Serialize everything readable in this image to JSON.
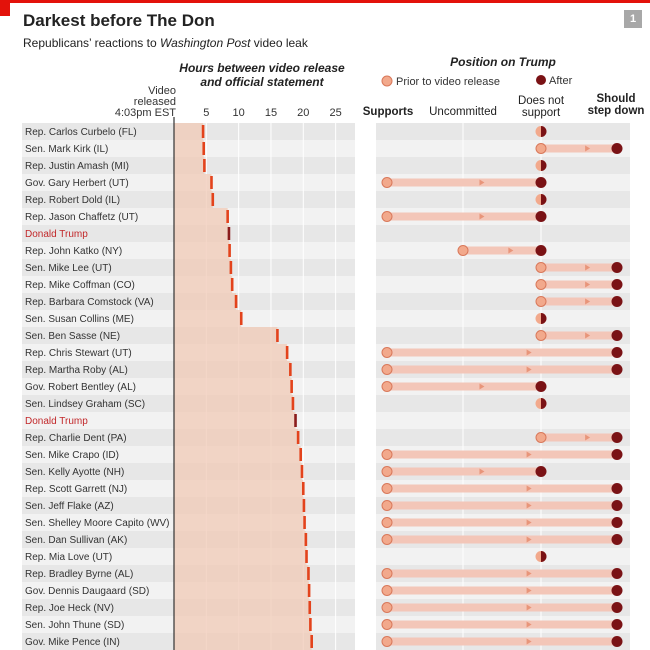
{
  "header": {
    "title": "Darkest before The Don",
    "subtitle_pre": "Republicans’ reactions to ",
    "subtitle_em": "Washington Post",
    "subtitle_post": " video leak",
    "badge": "1"
  },
  "chart_data": [
    {
      "type": "bar",
      "title": "Hours between video release and official statement",
      "origin_label": [
        "Video",
        "released",
        "4:03pm EST"
      ],
      "xlim": [
        0,
        28
      ],
      "ticks": [
        5,
        10,
        15,
        20,
        25
      ],
      "tick_labels": [
        "5",
        "10",
        "15",
        "20",
        "25"
      ],
      "highlight_color": "#c2282a",
      "rows": [
        {
          "name": "Rep. Carlos Curbelo (FL)",
          "hours": 4.5
        },
        {
          "name": "Sen. Mark Kirk (IL)",
          "hours": 4.6
        },
        {
          "name": "Rep. Justin Amash (MI)",
          "hours": 4.7
        },
        {
          "name": "Gov. Gary Herbert (UT)",
          "hours": 5.8
        },
        {
          "name": "Rep. Robert Dold (IL)",
          "hours": 6.0
        },
        {
          "name": "Rep. Jason Chaffetz (UT)",
          "hours": 8.3
        },
        {
          "name": "Donald Trump",
          "hours": 8.5,
          "highlight": true
        },
        {
          "name": "Rep. John Katko (NY)",
          "hours": 8.6
        },
        {
          "name": "Sen. Mike Lee (UT)",
          "hours": 8.8
        },
        {
          "name": "Rep. Mike Coffman (CO)",
          "hours": 9.0
        },
        {
          "name": "Rep. Barbara Comstock (VA)",
          "hours": 9.6
        },
        {
          "name": "Sen. Susan Collins (ME)",
          "hours": 10.4
        },
        {
          "name": "Sen. Ben Sasse (NE)",
          "hours": 16.0
        },
        {
          "name": "Rep. Chris Stewart (UT)",
          "hours": 17.5
        },
        {
          "name": "Rep. Martha Roby (AL)",
          "hours": 18.0
        },
        {
          "name": "Gov. Robert Bentley (AL)",
          "hours": 18.2
        },
        {
          "name": "Sen. Lindsey Graham (SC)",
          "hours": 18.4
        },
        {
          "name": "Donald Trump",
          "hours": 18.8,
          "highlight": true
        },
        {
          "name": "Rep. Charlie Dent (PA)",
          "hours": 19.2
        },
        {
          "name": "Sen. Mike Crapo (ID)",
          "hours": 19.6
        },
        {
          "name": "Sen. Kelly Ayotte (NH)",
          "hours": 19.8
        },
        {
          "name": "Rep. Scott Garrett (NJ)",
          "hours": 20.0
        },
        {
          "name": "Sen. Jeff Flake (AZ)",
          "hours": 20.1
        },
        {
          "name": "Sen. Shelley Moore Capito (WV)",
          "hours": 20.2
        },
        {
          "name": "Sen. Dan Sullivan (AK)",
          "hours": 20.4
        },
        {
          "name": "Rep. Mia Love (UT)",
          "hours": 20.5
        },
        {
          "name": "Rep. Bradley Byrne (AL)",
          "hours": 20.8
        },
        {
          "name": "Gov. Dennis Daugaard (SD)",
          "hours": 20.9
        },
        {
          "name": "Rep. Joe Heck (NV)",
          "hours": 21.0
        },
        {
          "name": "Sen. John Thune (SD)",
          "hours": 21.1
        },
        {
          "name": "Gov. Mike Pence (IN)",
          "hours": 21.3
        }
      ]
    },
    {
      "type": "scatter",
      "title": "Position on Trump",
      "categories": [
        "Supports",
        "Uncommitted",
        "Does not support",
        "Should step down"
      ],
      "category_labels": [
        [
          "Supports"
        ],
        [
          "Uncommitted"
        ],
        [
          "Does not",
          "support"
        ],
        [
          "Should",
          "step down"
        ]
      ],
      "legend": {
        "prior": "Prior to video release",
        "after": "After"
      },
      "colors": {
        "prior": "#f2a98c",
        "after": "#7a1215",
        "track": "#f3c6b8"
      },
      "rows": [
        {
          "before": "Does not support",
          "after": "Does not support"
        },
        {
          "before": "Does not support",
          "after": "Should step down"
        },
        {
          "before": "Does not support",
          "after": "Does not support"
        },
        {
          "before": "Supports",
          "after": "Does not support"
        },
        {
          "before": "Does not support",
          "after": "Does not support"
        },
        {
          "before": "Supports",
          "after": "Does not support"
        },
        null,
        {
          "before": "Uncommitted",
          "after": "Does not support"
        },
        {
          "before": "Does not support",
          "after": "Should step down"
        },
        {
          "before": "Does not support",
          "after": "Should step down"
        },
        {
          "before": "Does not support",
          "after": "Should step down"
        },
        {
          "before": "Does not support",
          "after": "Does not support"
        },
        {
          "before": "Does not support",
          "after": "Should step down"
        },
        {
          "before": "Supports",
          "after": "Should step down"
        },
        {
          "before": "Supports",
          "after": "Should step down"
        },
        {
          "before": "Supports",
          "after": "Does not support"
        },
        {
          "before": "Does not support",
          "after": "Does not support"
        },
        null,
        {
          "before": "Does not support",
          "after": "Should step down"
        },
        {
          "before": "Supports",
          "after": "Should step down"
        },
        {
          "before": "Supports",
          "after": "Does not support"
        },
        {
          "before": "Supports",
          "after": "Should step down"
        },
        {
          "before": "Supports",
          "after": "Should step down"
        },
        {
          "before": "Supports",
          "after": "Should step down"
        },
        {
          "before": "Supports",
          "after": "Should step down"
        },
        {
          "before": "Does not support",
          "after": "Does not support"
        },
        {
          "before": "Supports",
          "after": "Should step down"
        },
        {
          "before": "Supports",
          "after": "Should step down"
        },
        {
          "before": "Supports",
          "after": "Should step down"
        },
        {
          "before": "Supports",
          "after": "Should step down"
        },
        {
          "before": "Supports",
          "after": "Should step down"
        }
      ]
    }
  ]
}
